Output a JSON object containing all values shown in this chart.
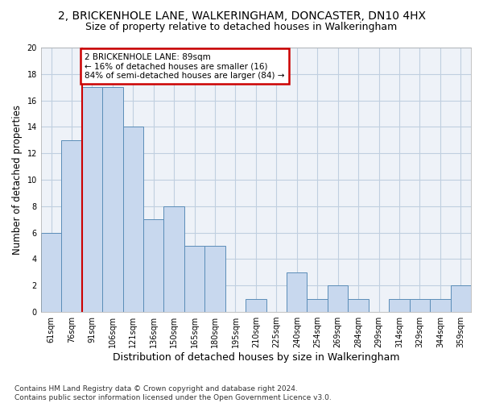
{
  "title": "2, BRICKENHOLE LANE, WALKERINGHAM, DONCASTER, DN10 4HX",
  "subtitle": "Size of property relative to detached houses in Walkeringham",
  "xlabel": "Distribution of detached houses by size in Walkeringham",
  "ylabel": "Number of detached properties",
  "categories": [
    "61sqm",
    "76sqm",
    "91sqm",
    "106sqm",
    "121sqm",
    "136sqm",
    "150sqm",
    "165sqm",
    "180sqm",
    "195sqm",
    "210sqm",
    "225sqm",
    "240sqm",
    "254sqm",
    "269sqm",
    "284sqm",
    "299sqm",
    "314sqm",
    "329sqm",
    "344sqm",
    "359sqm"
  ],
  "values": [
    6,
    13,
    17,
    17,
    14,
    7,
    8,
    5,
    5,
    0,
    1,
    0,
    3,
    1,
    2,
    1,
    0,
    1,
    1,
    1,
    2
  ],
  "bar_color": "#c8d8ee",
  "bar_edge_color": "#5b8db8",
  "grid_color": "#c0cfe0",
  "bg_color": "#eef2f8",
  "annotation_text": "2 BRICKENHOLE LANE: 89sqm\n← 16% of detached houses are smaller (16)\n84% of semi-detached houses are larger (84) →",
  "annotation_box_color": "#ffffff",
  "annotation_box_edge_color": "#cc0000",
  "vline_x_index": 1.5,
  "vline_color": "#cc0000",
  "ylim": [
    0,
    20
  ],
  "yticks": [
    0,
    2,
    4,
    6,
    8,
    10,
    12,
    14,
    16,
    18,
    20
  ],
  "footer": "Contains HM Land Registry data © Crown copyright and database right 2024.\nContains public sector information licensed under the Open Government Licence v3.0.",
  "title_fontsize": 10,
  "subtitle_fontsize": 9,
  "ylabel_fontsize": 8.5,
  "xlabel_fontsize": 9,
  "tick_fontsize": 7,
  "footer_fontsize": 6.5,
  "annot_fontsize": 7.5
}
